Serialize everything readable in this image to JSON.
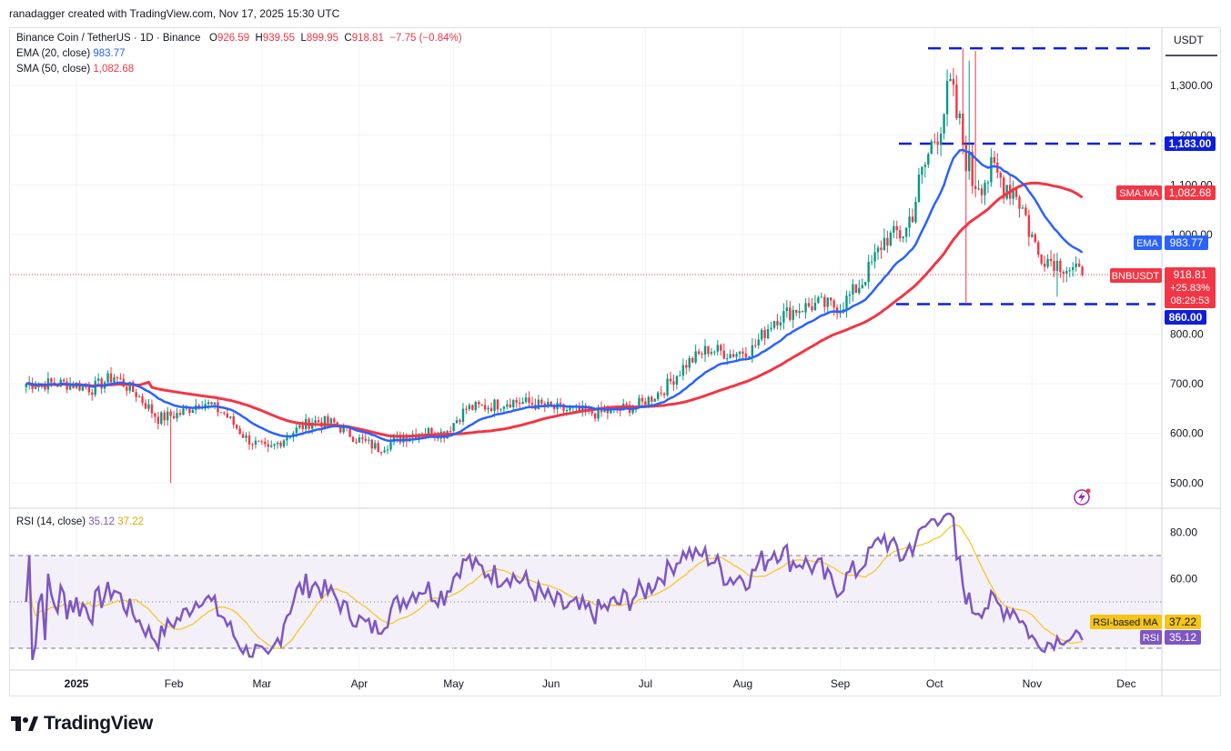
{
  "credit": "ranadagger created with TradingView.com, Nov 17, 2025 15:30 UTC",
  "header": {
    "symbol": "Binance Coin / TetherUS · 1D · Binance",
    "o_label": "O",
    "o_value": "926.59",
    "h_label": "H",
    "h_value": "939.55",
    "l_label": "L",
    "l_value": "899.95",
    "c_label": "C",
    "c_value": "918.81",
    "change": "−7.75 (−0.84%)",
    "ema_label": "EMA (20, close)",
    "ema_value": "983.77",
    "sma_label": "SMA (50, close)",
    "sma_value": "1,082.68"
  },
  "currency": "USDT",
  "rsi_header": {
    "label": "RSI (14, close)",
    "rsi": "35.12",
    "ma": "37.22"
  },
  "price_tags": {
    "sma": {
      "name": "SMA:MA",
      "value": "1,082.68"
    },
    "ema": {
      "name": "EMA",
      "value": "983.77"
    },
    "last": {
      "name": "BNBUSDT",
      "value": "918.81",
      "pct": "+25.83%",
      "timer": "08:29:53"
    },
    "level_1183": "1,183.00",
    "level_860": "860.00"
  },
  "rsi_tags": {
    "ma": {
      "name": "RSI-based MA",
      "value": "37.22"
    },
    "rsi": {
      "name": "RSI",
      "value": "35.12"
    }
  },
  "logo_text": "TradingView",
  "colors": {
    "up": "#089981",
    "down": "#f23645",
    "ema": "#2962ff",
    "sma": "#f23645",
    "rsi": "#7e57c2",
    "rsi_ma": "#f5c518",
    "grid": "#f0f3fa",
    "levels": "#0d1fdc"
  },
  "chart_data": {
    "type": "candlestick",
    "y_ticks": [
      "1,300.00",
      "1,200.00",
      "1,100.00",
      "1,000.00",
      "800.00",
      "700.00",
      "600.00",
      "500.00"
    ],
    "y_tick_values": [
      1300,
      1200,
      1100,
      1000,
      800,
      700,
      600,
      500
    ],
    "x_labels": [
      "2025",
      "Feb",
      "Mar",
      "Apr",
      "May",
      "Jun",
      "Jul",
      "Aug",
      "Sep",
      "Oct",
      "Nov",
      "Dec"
    ],
    "x_label_days": [
      0,
      31,
      59,
      90,
      120,
      151,
      181,
      212,
      243,
      273,
      304,
      334
    ],
    "support_resistance": [
      1375,
      1183,
      860
    ],
    "last_close": 918.81,
    "closes_weekly": [
      {
        "date": "2024-12-30",
        "close": 700
      },
      {
        "date": "2025-01-06",
        "close": 690
      },
      {
        "date": "2025-01-13",
        "close": 715
      },
      {
        "date": "2025-01-20",
        "close": 680
      },
      {
        "date": "2025-01-27",
        "close": 630
      },
      {
        "date": "2025-02-03",
        "close": 640
      },
      {
        "date": "2025-02-10",
        "close": 665
      },
      {
        "date": "2025-02-17",
        "close": 640
      },
      {
        "date": "2025-02-24",
        "close": 590
      },
      {
        "date": "2025-03-03",
        "close": 565
      },
      {
        "date": "2025-03-10",
        "close": 600
      },
      {
        "date": "2025-03-17",
        "close": 625
      },
      {
        "date": "2025-03-24",
        "close": 620
      },
      {
        "date": "2025-03-31",
        "close": 590
      },
      {
        "date": "2025-04-07",
        "close": 570
      },
      {
        "date": "2025-04-14",
        "close": 590
      },
      {
        "date": "2025-04-21",
        "close": 605
      },
      {
        "date": "2025-04-28",
        "close": 600
      },
      {
        "date": "2025-05-05",
        "close": 650
      },
      {
        "date": "2025-05-12",
        "close": 655
      },
      {
        "date": "2025-05-19",
        "close": 665
      },
      {
        "date": "2025-05-26",
        "close": 660
      },
      {
        "date": "2025-06-02",
        "close": 650
      },
      {
        "date": "2025-06-09",
        "close": 645
      },
      {
        "date": "2025-06-16",
        "close": 640
      },
      {
        "date": "2025-06-23",
        "close": 648
      },
      {
        "date": "2025-06-30",
        "close": 660
      },
      {
        "date": "2025-07-07",
        "close": 690
      },
      {
        "date": "2025-07-14",
        "close": 740
      },
      {
        "date": "2025-07-21",
        "close": 770
      },
      {
        "date": "2025-07-28",
        "close": 760
      },
      {
        "date": "2025-08-04",
        "close": 770
      },
      {
        "date": "2025-08-11",
        "close": 830
      },
      {
        "date": "2025-08-18",
        "close": 850
      },
      {
        "date": "2025-08-25",
        "close": 860
      },
      {
        "date": "2025-09-01",
        "close": 855
      },
      {
        "date": "2025-09-08",
        "close": 905
      },
      {
        "date": "2025-09-15",
        "close": 990
      },
      {
        "date": "2025-09-22",
        "close": 1010
      },
      {
        "date": "2025-09-29",
        "close": 1160
      },
      {
        "date": "2025-10-06",
        "close": 1290
      },
      {
        "date": "2025-10-13",
        "close": 1110
      },
      {
        "date": "2025-10-20",
        "close": 1120
      },
      {
        "date": "2025-10-27",
        "close": 1090
      },
      {
        "date": "2025-11-03",
        "close": 960
      },
      {
        "date": "2025-11-10",
        "close": 940
      },
      {
        "date": "2025-11-17",
        "close": 918.81
      }
    ]
  }
}
